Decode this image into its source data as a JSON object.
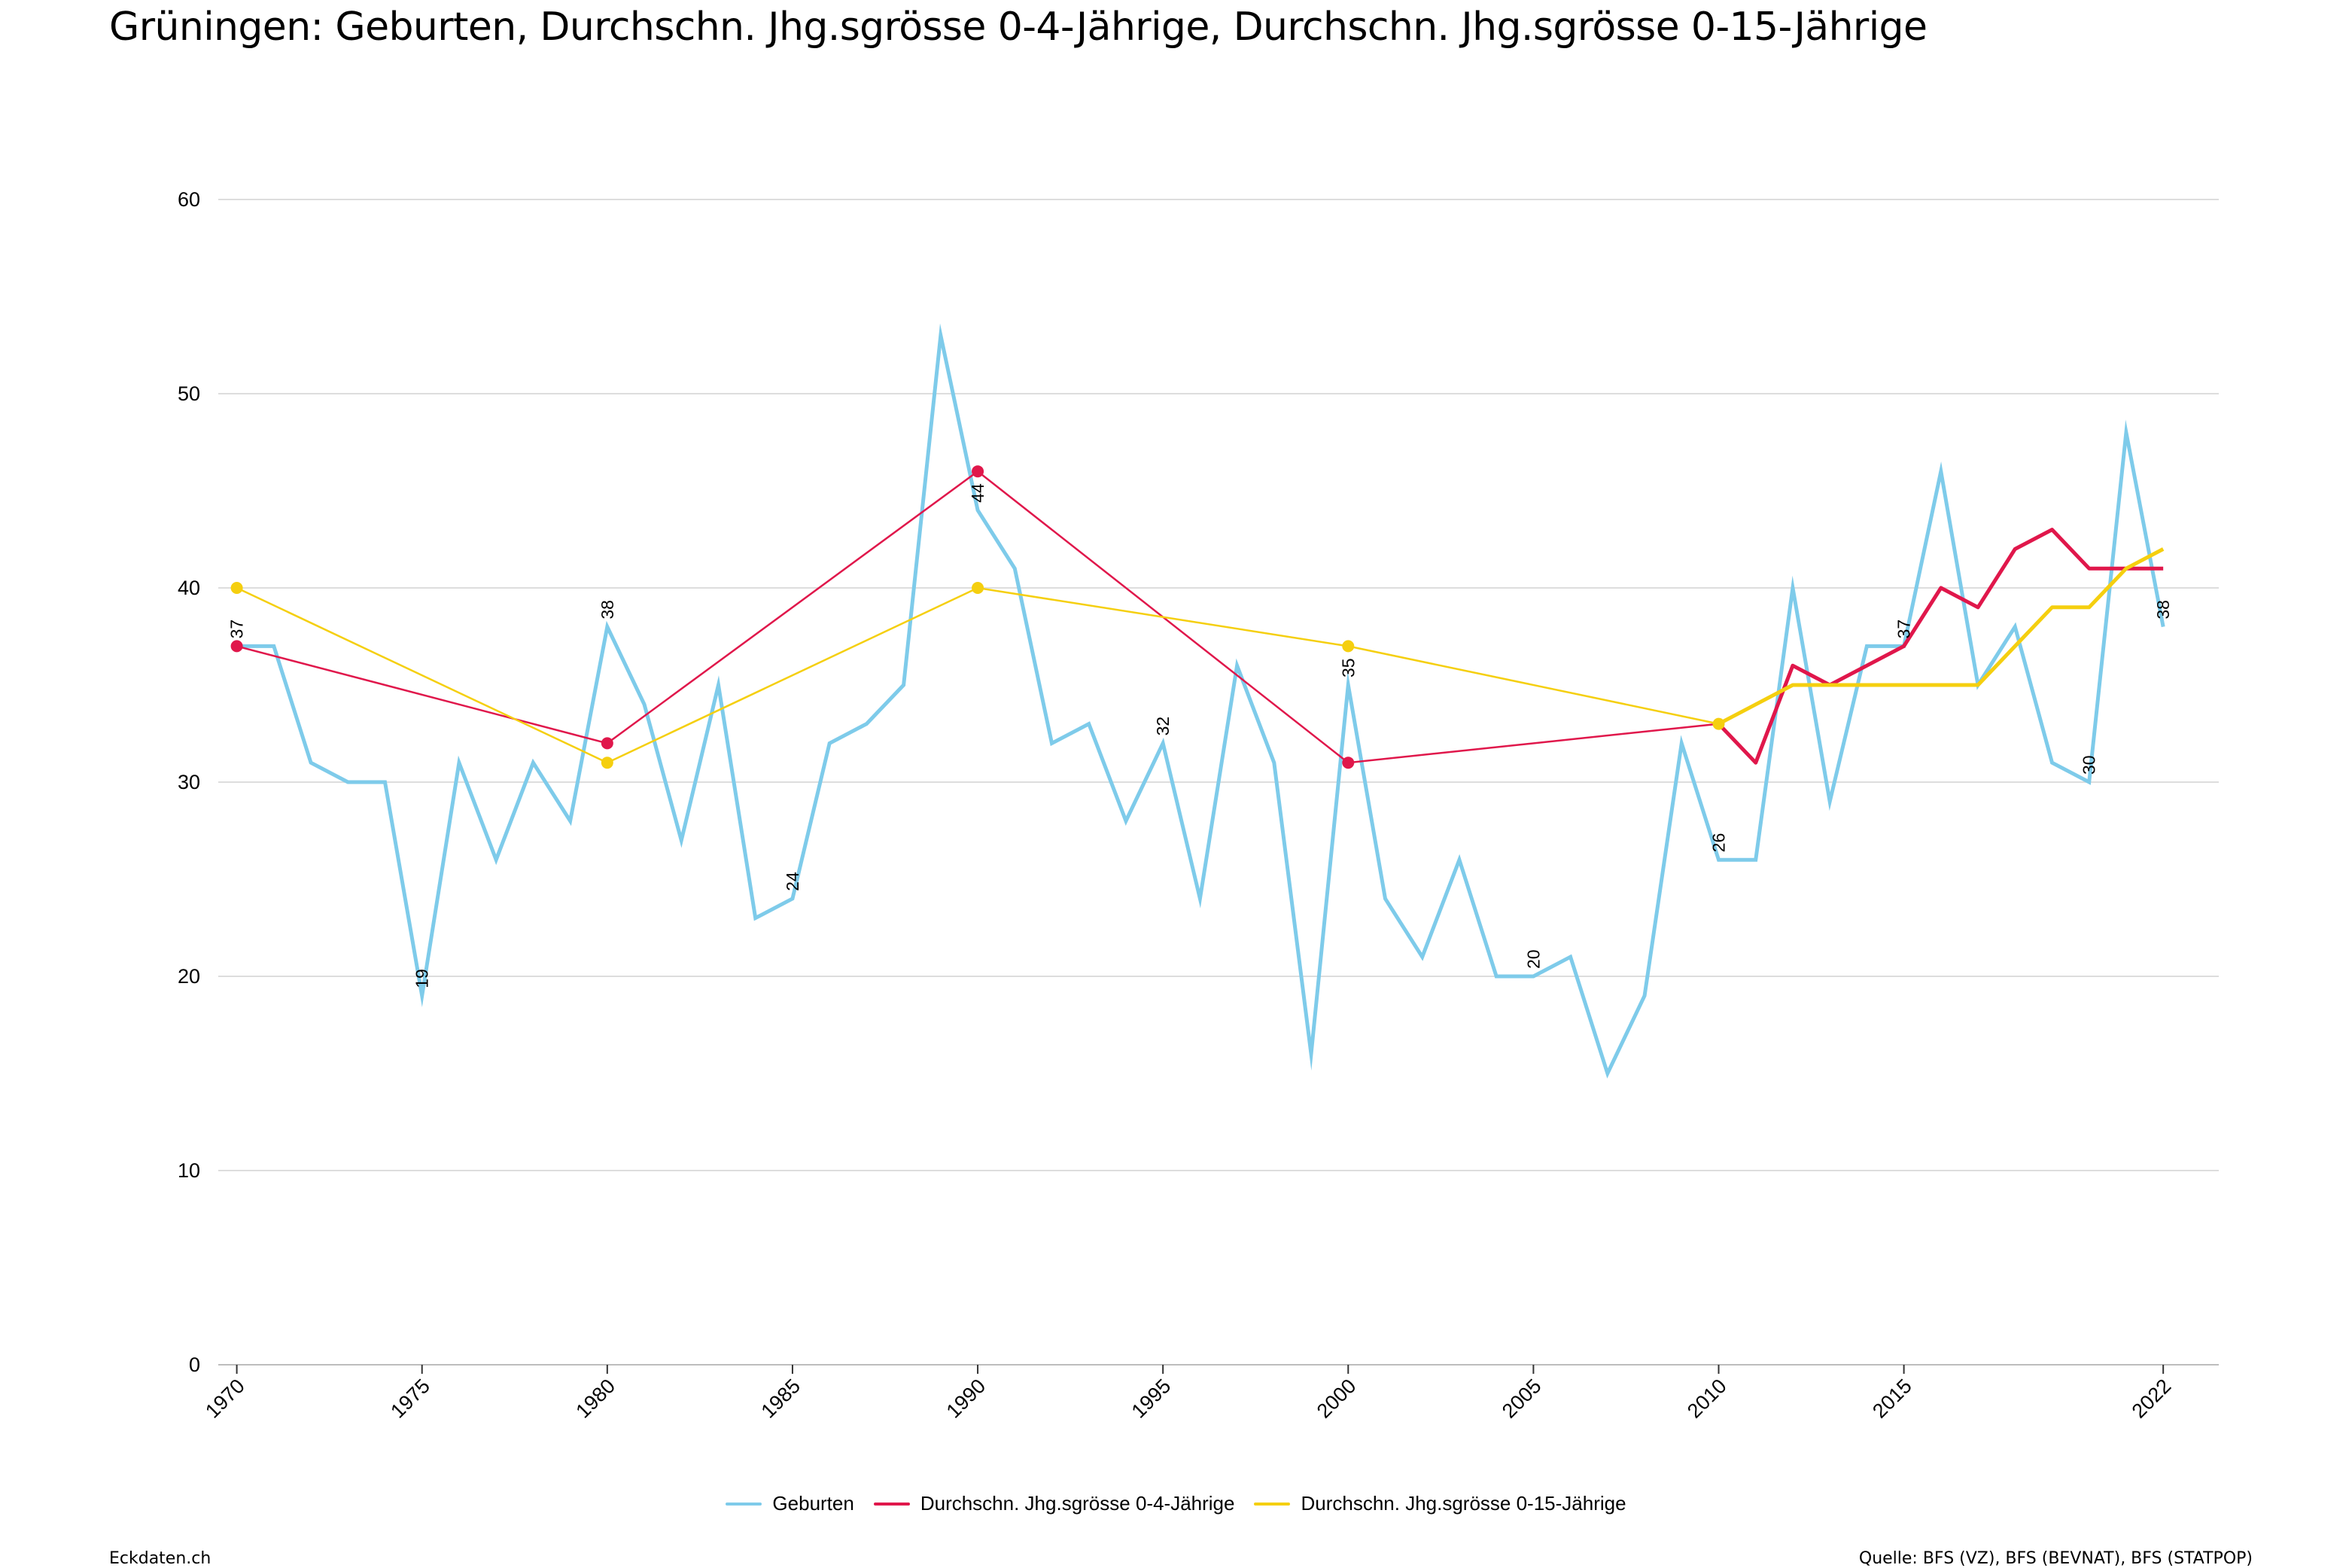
{
  "title": "Grüningen: Geburten, Durchschn. Jhg.sgrösse 0-4-Jährige, Durchschn. Jhg.sgrösse 0-15-Jährige",
  "footer": {
    "brand": "Eckdaten.ch",
    "source": "Quelle: BFS (VZ), BFS (BEVNAT), BFS (STATPOP)"
  },
  "legend": [
    {
      "label": "Geburten",
      "color": "#7ecbea"
    },
    {
      "label": "Durchschn. Jhg.sgrösse 0-4-Jährige",
      "color": "#e0174b"
    },
    {
      "label": "Durchschn. Jhg.sgrösse 0-15-Jährige",
      "color": "#f5cf0f"
    }
  ],
  "chart_data": {
    "type": "line",
    "title": "Grüningen: Geburten, Durchschn. Jhg.sgrösse 0-4-Jährige, Durchschn. Jhg.sgrösse 0-15-Jährige",
    "xlabel": "",
    "ylabel": "",
    "xlim": [
      1970,
      2022
    ],
    "ylim": [
      0,
      60
    ],
    "yticks": [
      0,
      10,
      20,
      30,
      40,
      50,
      60
    ],
    "xticks": [
      "1970",
      "1975",
      "1980",
      "1985",
      "1990",
      "1995",
      "2000",
      "2005",
      "2010",
      "2015",
      "2022"
    ],
    "grid": "horizontal",
    "legend_position": "bottom",
    "series": [
      {
        "name": "Geburten",
        "color": "#7ecbea",
        "x": [
          1970,
          1971,
          1972,
          1973,
          1974,
          1975,
          1976,
          1977,
          1978,
          1979,
          1980,
          1981,
          1982,
          1983,
          1984,
          1985,
          1986,
          1987,
          1988,
          1989,
          1990,
          1991,
          1992,
          1993,
          1994,
          1995,
          1996,
          1997,
          1998,
          1999,
          2000,
          2001,
          2002,
          2003,
          2004,
          2005,
          2006,
          2007,
          2008,
          2009,
          2010,
          2011,
          2012,
          2013,
          2014,
          2015,
          2016,
          2017,
          2018,
          2019,
          2020,
          2021,
          2022
        ],
        "y": [
          37,
          37,
          31,
          30,
          30,
          19,
          31,
          26,
          31,
          28,
          38,
          34,
          27,
          35,
          23,
          24,
          32,
          33,
          35,
          53,
          44,
          41,
          32,
          33,
          28,
          32,
          24,
          36,
          31,
          16,
          35,
          24,
          21,
          26,
          20,
          20,
          21,
          15,
          19,
          32,
          26,
          26,
          40,
          29,
          37,
          37,
          46,
          35,
          38,
          31,
          30,
          48,
          38
        ]
      },
      {
        "name": "Durchschn. Jhg.sgrösse 0-4-Jährige",
        "color": "#e0174b",
        "x": [
          1970,
          1980,
          1990,
          2000,
          2010,
          2011,
          2012,
          2013,
          2014,
          2015,
          2016,
          2017,
          2018,
          2019,
          2020,
          2021,
          2022
        ],
        "y": [
          37,
          32,
          46,
          31,
          33,
          31,
          36,
          35,
          36,
          37,
          40,
          39,
          42,
          43,
          41,
          41,
          41
        ],
        "markers_at": [
          1970,
          1980,
          1990,
          2000
        ]
      },
      {
        "name": "Durchschn. Jhg.sgrösse 0-15-Jährige",
        "color": "#f5cf0f",
        "x": [
          1970,
          1980,
          1990,
          2000,
          2010,
          2011,
          2012,
          2013,
          2014,
          2015,
          2016,
          2017,
          2018,
          2019,
          2020,
          2021,
          2022
        ],
        "y": [
          40,
          31,
          40,
          37,
          33,
          34,
          35,
          35,
          35,
          35,
          35,
          35,
          37,
          39,
          39,
          41,
          42
        ],
        "markers_at": [
          1970,
          1980,
          1990,
          2000,
          2010
        ]
      }
    ],
    "data_labels": [
      {
        "x": 1970,
        "text": "37"
      },
      {
        "x": 1975,
        "text": "19"
      },
      {
        "x": 1980,
        "text": "38"
      },
      {
        "x": 1985,
        "text": "24"
      },
      {
        "x": 1990,
        "text": "44"
      },
      {
        "x": 1995,
        "text": "32"
      },
      {
        "x": 2000,
        "text": "35"
      },
      {
        "x": 2005,
        "text": "20"
      },
      {
        "x": 2010,
        "text": "26"
      },
      {
        "x": 2015,
        "text": "37"
      },
      {
        "x": 2020,
        "text": "30"
      },
      {
        "x": 2022,
        "text": "38"
      }
    ]
  }
}
